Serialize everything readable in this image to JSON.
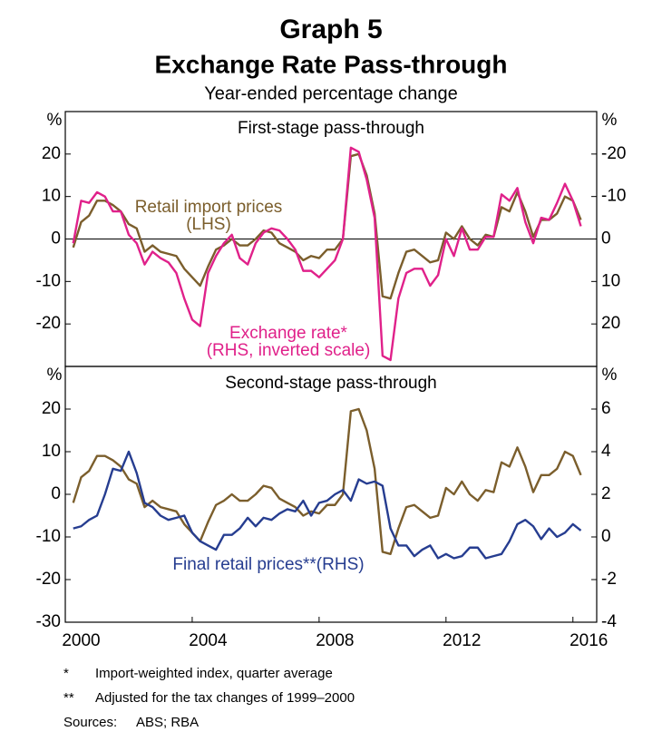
{
  "header": {
    "number": "Graph 5",
    "title": "Exchange Rate Pass-through",
    "subtitle": "Year-ended percentage change"
  },
  "chart_data": [
    {
      "type": "line",
      "title": "First-stage pass-through",
      "ylabel": "%",
      "y2label": "%",
      "xlim": [
        2000,
        2016.75
      ],
      "ylim": [
        -30,
        30
      ],
      "yticks": [
        -20,
        -10,
        0,
        10,
        20
      ],
      "y2lim": [
        30,
        -30
      ],
      "y2ticks": [
        -20,
        -10,
        0,
        10,
        20
      ],
      "zero_line": true,
      "x": [
        2000.25,
        2000.5,
        2000.75,
        2001,
        2001.25,
        2001.5,
        2001.75,
        2002,
        2002.25,
        2002.5,
        2002.75,
        2003,
        2003.25,
        2003.5,
        2003.75,
        2004,
        2004.25,
        2004.5,
        2004.75,
        2005,
        2005.25,
        2005.5,
        2005.75,
        2006,
        2006.25,
        2006.5,
        2006.75,
        2007,
        2007.25,
        2007.5,
        2007.75,
        2008,
        2008.25,
        2008.5,
        2008.75,
        2009,
        2009.25,
        2009.5,
        2009.75,
        2010,
        2010.25,
        2010.5,
        2010.75,
        2011,
        2011.25,
        2011.5,
        2011.75,
        2012,
        2012.25,
        2012.5,
        2012.75,
        2013,
        2013.25,
        2013.5,
        2013.75,
        2014,
        2014.25,
        2014.5,
        2014.75,
        2015,
        2015.25,
        2015.5,
        2015.75,
        2016,
        2016.25
      ],
      "series": [
        {
          "name": "Retail import prices",
          "note": "(LHS)",
          "color": "#7b5e2c",
          "values": [
            -2,
            4,
            5.5,
            9,
            9,
            8,
            6.5,
            3.5,
            2.5,
            -3,
            -1.5,
            -3,
            -3.5,
            -4,
            -7,
            -9,
            -11,
            -6.5,
            -2.5,
            -1.5,
            0,
            -1.5,
            -1.5,
            0,
            2,
            1.5,
            -1,
            -2,
            -3,
            -5,
            -4,
            -4.5,
            -2.5,
            -2.5,
            0,
            19.5,
            20,
            15,
            6,
            -13.5,
            -14,
            -8,
            -3,
            -2.5,
            -4,
            -5.5,
            -5,
            1.5,
            0,
            3,
            0,
            -1.5,
            1,
            0.5,
            7.5,
            6.5,
            11,
            6.5,
            0.5,
            4.5,
            4.5,
            6,
            10,
            9,
            4.5
          ]
        },
        {
          "name": "Exchange rate*",
          "note": "(RHS, inverted scale)",
          "color": "#e0218a",
          "axis": "y2",
          "values": [
            1,
            -9,
            -8.5,
            -11,
            -10,
            -6.5,
            -6.5,
            -1,
            1,
            6,
            3,
            4.5,
            5.5,
            8,
            14,
            19,
            20.5,
            8,
            4,
            1,
            -1,
            4.5,
            6,
            1,
            -1.5,
            -2.5,
            -2,
            0,
            2.5,
            7.5,
            7.5,
            9,
            7,
            5,
            0,
            -21.5,
            -20.5,
            -14,
            -5,
            27.5,
            28.5,
            14,
            8,
            7,
            7,
            11,
            8.5,
            0,
            4,
            -2.5,
            2.5,
            2.5,
            -0.5,
            -0.5,
            -10.5,
            -9,
            -12,
            -4,
            1,
            -5,
            -4.5,
            -8.5,
            -13,
            -9,
            -3
          ]
        }
      ]
    },
    {
      "type": "line",
      "title": "Second-stage pass-through",
      "ylabel": "%",
      "y2label": "%",
      "xlim": [
        2000,
        2016.75
      ],
      "xticks": [
        2000,
        2004,
        2008,
        2012,
        2016
      ],
      "ylim": [
        -30,
        30
      ],
      "yticks": [
        -30,
        -20,
        -10,
        0,
        10,
        20
      ],
      "y2lim": [
        -4,
        8
      ],
      "y2ticks": [
        -4,
        -2,
        0,
        2,
        4,
        6
      ],
      "x": [
        2000.25,
        2000.5,
        2000.75,
        2001,
        2001.25,
        2001.5,
        2001.75,
        2002,
        2002.25,
        2002.5,
        2002.75,
        2003,
        2003.25,
        2003.5,
        2003.75,
        2004,
        2004.25,
        2004.5,
        2004.75,
        2005,
        2005.25,
        2005.5,
        2005.75,
        2006,
        2006.25,
        2006.5,
        2006.75,
        2007,
        2007.25,
        2007.5,
        2007.75,
        2008,
        2008.25,
        2008.5,
        2008.75,
        2009,
        2009.25,
        2009.5,
        2009.75,
        2010,
        2010.25,
        2010.5,
        2010.75,
        2011,
        2011.25,
        2011.5,
        2011.75,
        2012,
        2012.25,
        2012.5,
        2012.75,
        2013,
        2013.25,
        2013.5,
        2013.75,
        2014,
        2014.25,
        2014.5,
        2014.75,
        2015,
        2015.25,
        2015.5,
        2015.75,
        2016,
        2016.25
      ],
      "series": [
        {
          "color": "#7b5e2c",
          "values": [
            -2,
            4,
            5.5,
            9,
            9,
            8,
            6.5,
            3.5,
            2.5,
            -3,
            -1.5,
            -3,
            -3.5,
            -4,
            -7,
            -9,
            -11,
            -6.5,
            -2.5,
            -1.5,
            0,
            -1.5,
            -1.5,
            0,
            2,
            1.5,
            -1,
            -2,
            -3,
            -5,
            -4,
            -4.5,
            -2.5,
            -2.5,
            0,
            19.5,
            20,
            15,
            6,
            -13.5,
            -14,
            -8,
            -3,
            -2.5,
            -4,
            -5.5,
            -5,
            1.5,
            0,
            3,
            0,
            -1.5,
            1,
            0.5,
            7.5,
            6.5,
            11,
            6.5,
            0.5,
            4.5,
            4.5,
            6,
            10,
            9,
            4.5
          ]
        },
        {
          "name": "Final retail prices**(RHS)",
          "color": "#263d90",
          "axis": "y2",
          "values": [
            0.4,
            0.5,
            0.8,
            1,
            2,
            3.2,
            3.1,
            4,
            3,
            1.6,
            1.4,
            1,
            0.8,
            0.9,
            1,
            0.2,
            -0.2,
            -0.4,
            -0.6,
            0.1,
            0.1,
            0.4,
            0.9,
            0.5,
            0.9,
            0.8,
            1.1,
            1.3,
            1.2,
            1.7,
            1,
            1.6,
            1.7,
            2,
            2.2,
            1.7,
            2.7,
            2.5,
            2.6,
            2.4,
            0.4,
            -0.4,
            -0.4,
            -0.9,
            -0.6,
            -0.4,
            -1,
            -0.8,
            -1,
            -0.9,
            -0.5,
            -0.5,
            -1,
            -0.9,
            -0.8,
            -0.2,
            0.6,
            0.8,
            0.5,
            -0.1,
            0.4,
            0,
            0.2,
            0.6,
            0.3
          ]
        }
      ]
    }
  ],
  "footnotes": [
    {
      "mark": "*",
      "text": "Import-weighted index, quarter average"
    },
    {
      "mark": "**",
      "text": "Adjusted for the tax changes of 1999–2000"
    }
  ],
  "sources": {
    "label": "Sources:",
    "text": "ABS; RBA"
  }
}
